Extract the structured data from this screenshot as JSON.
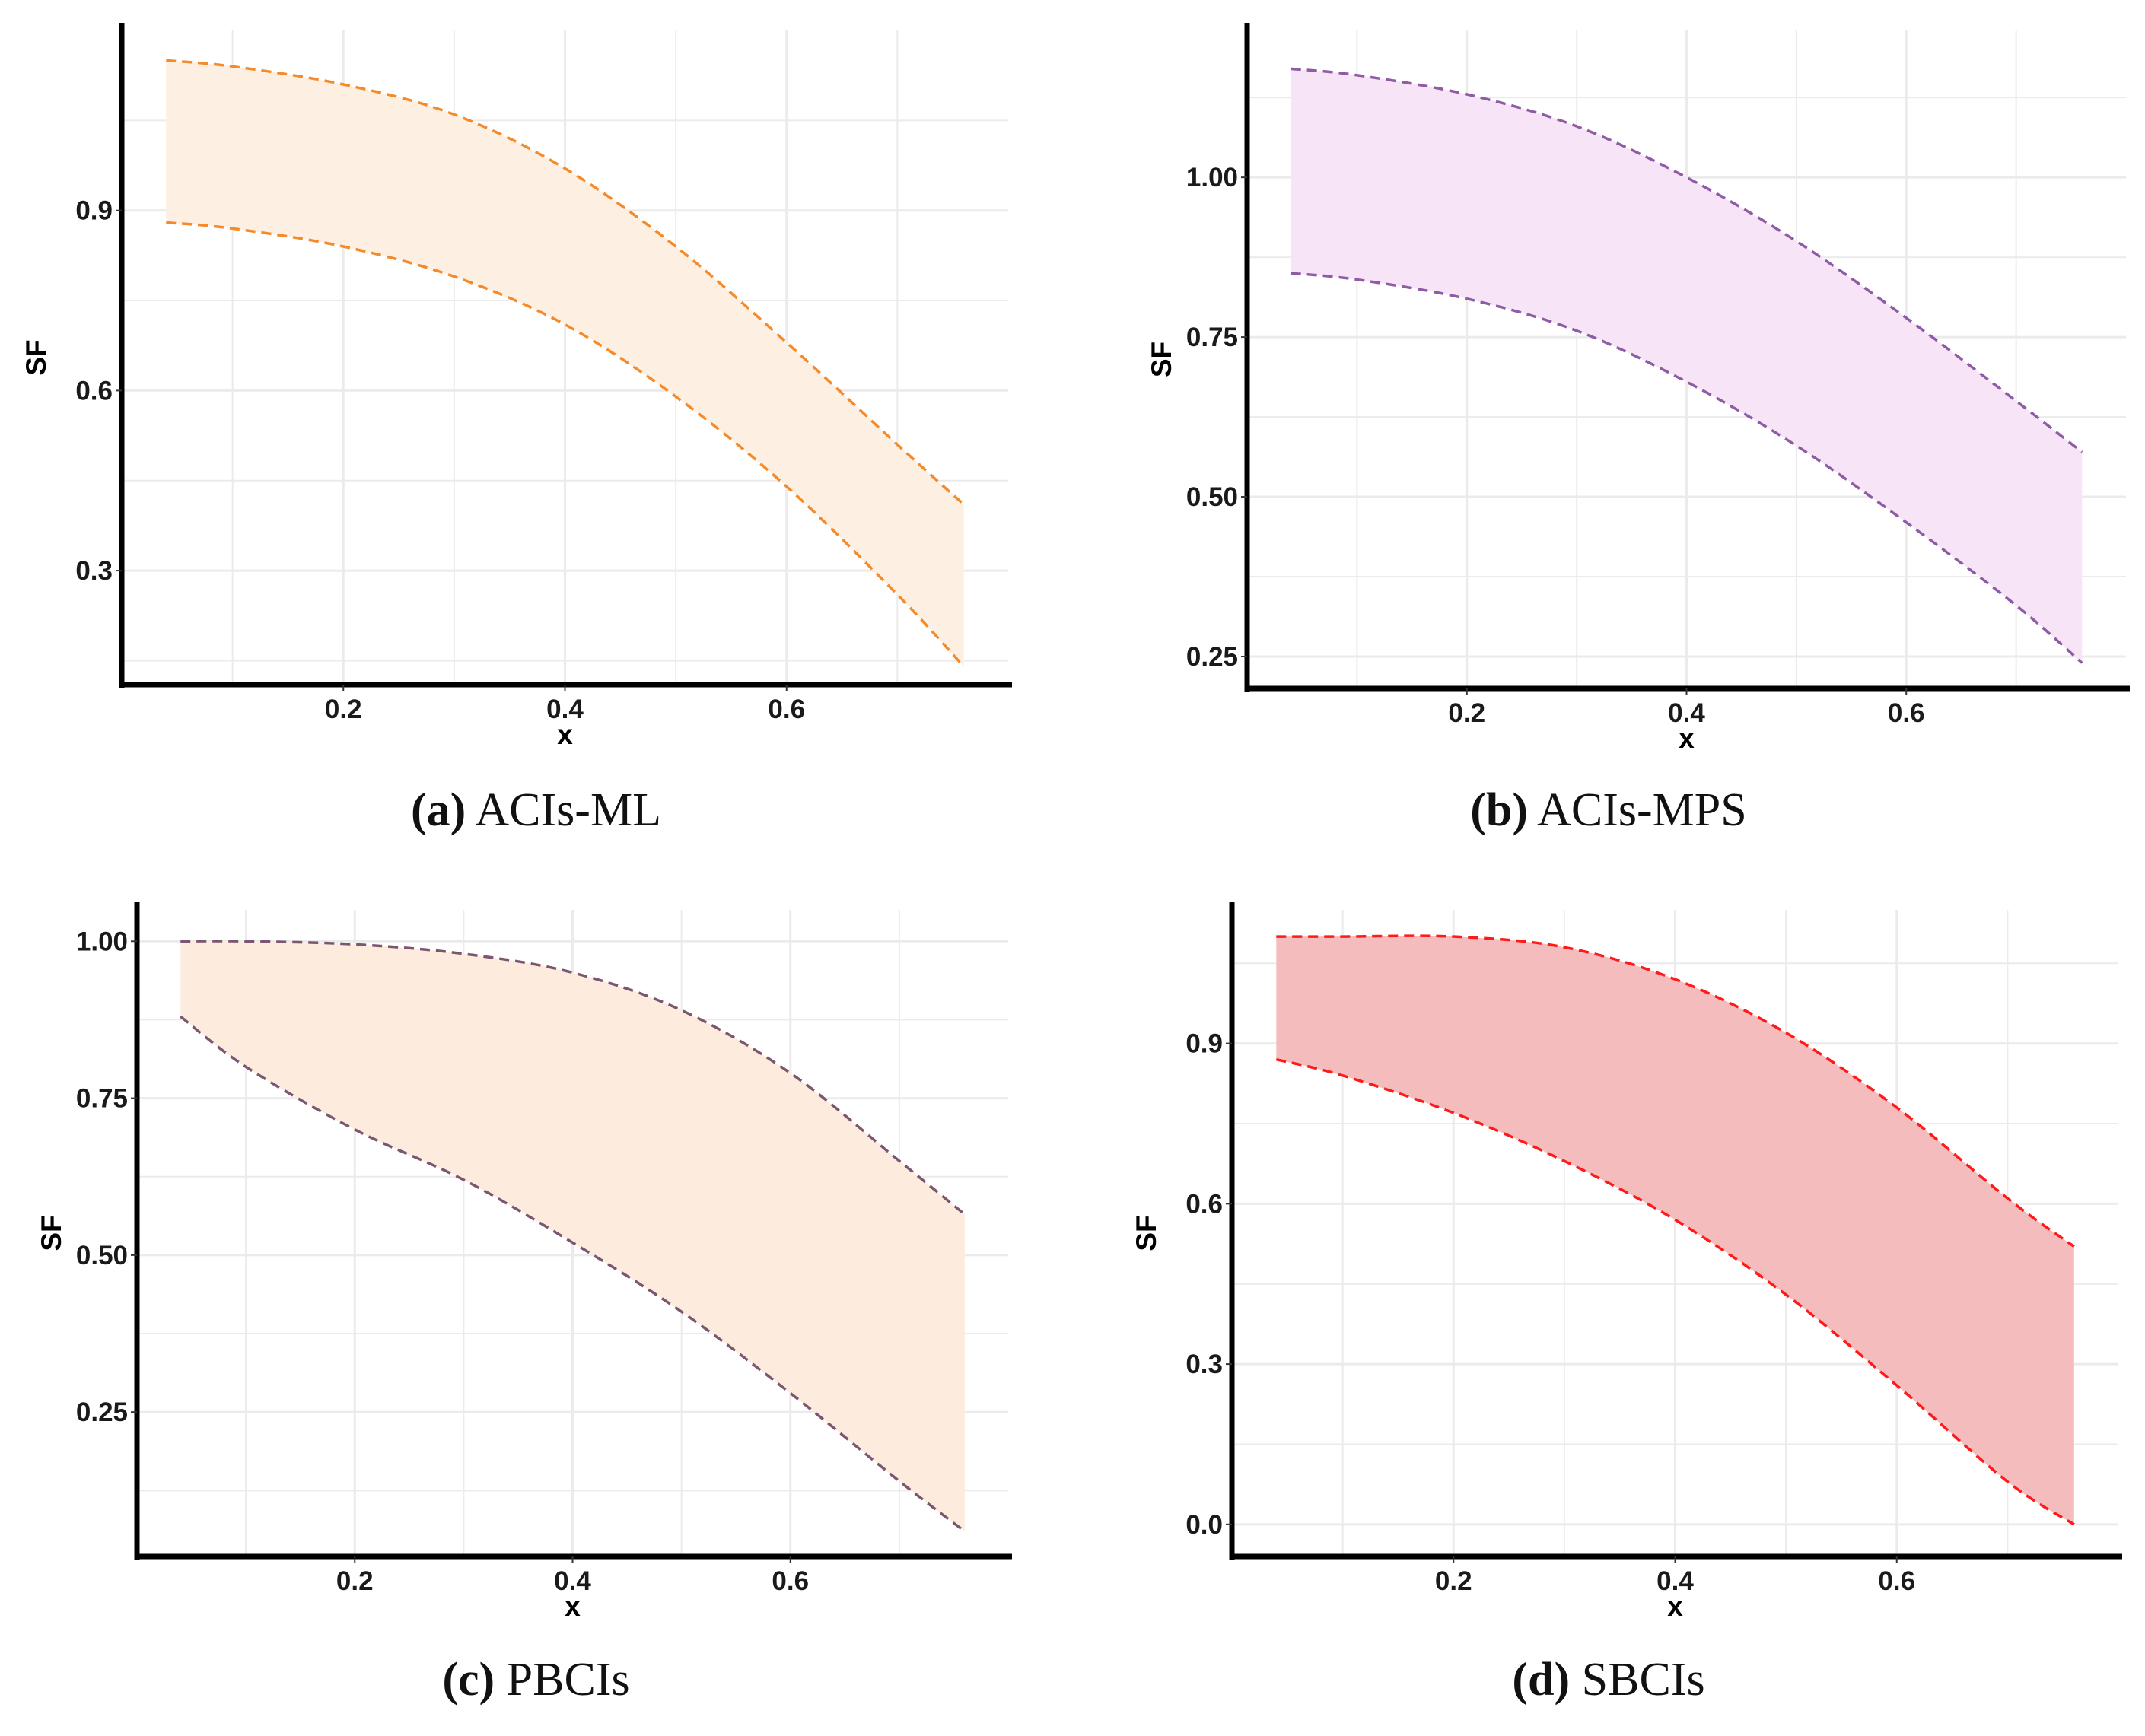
{
  "colors": {
    "grid": "#ebebeb",
    "axis": "#000000"
  },
  "chart_data": [
    {
      "type": "area",
      "panel_id": "a",
      "caption_label": "(a)",
      "caption_text": "ACIs-ML",
      "xlabel": "x",
      "ylabel": "SF",
      "xlim": [
        0.0,
        0.8
      ],
      "ylim": [
        0.11,
        1.2
      ],
      "x_ticks": [
        0.2,
        0.4,
        0.6
      ],
      "x_tick_labels": [
        "0.2",
        "0.4",
        "0.6"
      ],
      "y_ticks": [
        0.3,
        0.6,
        0.9
      ],
      "y_tick_labels": [
        "0.3",
        "0.6",
        "0.9"
      ],
      "x_minor": [
        0.1,
        0.3,
        0.5,
        0.7
      ],
      "y_minor": [
        0.15,
        0.45,
        0.75,
        1.05
      ],
      "grid": true,
      "fill": "#fdf0e3",
      "line": "#f58a2a",
      "x": [
        0.04,
        0.1,
        0.2,
        0.3,
        0.4,
        0.5,
        0.6,
        0.7,
        0.76
      ],
      "upper": [
        1.15,
        1.14,
        1.11,
        1.06,
        0.97,
        0.84,
        0.68,
        0.51,
        0.41
      ],
      "lower": [
        0.88,
        0.87,
        0.84,
        0.79,
        0.71,
        0.59,
        0.44,
        0.26,
        0.14
      ]
    },
    {
      "type": "area",
      "panel_id": "b",
      "caption_label": "(b)",
      "caption_text": "ACIs-MPS",
      "xlabel": "x",
      "ylabel": "SF",
      "xlim": [
        0.0,
        0.8
      ],
      "ylim": [
        0.2,
        1.23
      ],
      "x_ticks": [
        0.2,
        0.4,
        0.6
      ],
      "x_tick_labels": [
        "0.2",
        "0.4",
        "0.6"
      ],
      "y_ticks": [
        0.25,
        0.5,
        0.75,
        1.0
      ],
      "y_tick_labels": [
        "0.25",
        "0.50",
        "0.75",
        "1.00"
      ],
      "x_minor": [
        0.1,
        0.3,
        0.5,
        0.7
      ],
      "y_minor": [
        0.375,
        0.625,
        0.875,
        1.125
      ],
      "grid": true,
      "fill": "#f8e4f7",
      "line": "#8e5ca6",
      "x": [
        0.04,
        0.1,
        0.2,
        0.3,
        0.4,
        0.5,
        0.6,
        0.7,
        0.76
      ],
      "upper": [
        1.17,
        1.16,
        1.13,
        1.08,
        1.0,
        0.9,
        0.78,
        0.65,
        0.57
      ],
      "lower": [
        0.85,
        0.84,
        0.81,
        0.76,
        0.68,
        0.58,
        0.46,
        0.33,
        0.24
      ]
    },
    {
      "type": "area",
      "panel_id": "c",
      "caption_label": "(c)",
      "caption_text": "PBCIs",
      "xlabel": "x",
      "ylabel": "SF",
      "xlim": [
        0.0,
        0.8
      ],
      "ylim": [
        0.02,
        1.05
      ],
      "x_ticks": [
        0.2,
        0.4,
        0.6
      ],
      "x_tick_labels": [
        "0.2",
        "0.4",
        "0.6"
      ],
      "y_ticks": [
        0.25,
        0.5,
        0.75,
        1.0
      ],
      "y_tick_labels": [
        "0.25",
        "0.50",
        "0.75",
        "1.00"
      ],
      "x_minor": [
        0.1,
        0.3,
        0.5,
        0.7
      ],
      "y_minor": [
        0.125,
        0.375,
        0.625,
        0.875
      ],
      "grid": true,
      "fill": "#fdebdd",
      "line": "#7a5670",
      "x": [
        0.04,
        0.1,
        0.2,
        0.3,
        0.4,
        0.5,
        0.6,
        0.7,
        0.76
      ],
      "upper": [
        1.0,
        1.0,
        0.995,
        0.98,
        0.95,
        0.89,
        0.79,
        0.65,
        0.565
      ],
      "lower": [
        0.88,
        0.8,
        0.7,
        0.62,
        0.52,
        0.41,
        0.28,
        0.14,
        0.06
      ]
    },
    {
      "type": "area",
      "panel_id": "d",
      "caption_label": "(d)",
      "caption_text": "SBCIs",
      "xlabel": "x",
      "ylabel": "SF",
      "xlim": [
        0.0,
        0.8
      ],
      "ylim": [
        -0.06,
        1.15
      ],
      "x_ticks": [
        0.2,
        0.4,
        0.6
      ],
      "x_tick_labels": [
        "0.2",
        "0.4",
        "0.6"
      ],
      "y_ticks": [
        0.0,
        0.3,
        0.6,
        0.9
      ],
      "y_tick_labels": [
        "0.0",
        "0.3",
        "0.6",
        "0.9"
      ],
      "x_minor": [
        0.1,
        0.3,
        0.5,
        0.7
      ],
      "y_minor": [
        0.15,
        0.45,
        0.75,
        1.05
      ],
      "grid": true,
      "fill": "#f5bcbe",
      "line": "#ff1a1a",
      "x": [
        0.04,
        0.1,
        0.2,
        0.3,
        0.4,
        0.5,
        0.6,
        0.7,
        0.76
      ],
      "upper": [
        1.1,
        1.1,
        1.1,
        1.08,
        1.02,
        0.92,
        0.78,
        0.61,
        0.52
      ],
      "lower": [
        0.87,
        0.84,
        0.77,
        0.68,
        0.57,
        0.43,
        0.26,
        0.08,
        0.0
      ]
    }
  ]
}
